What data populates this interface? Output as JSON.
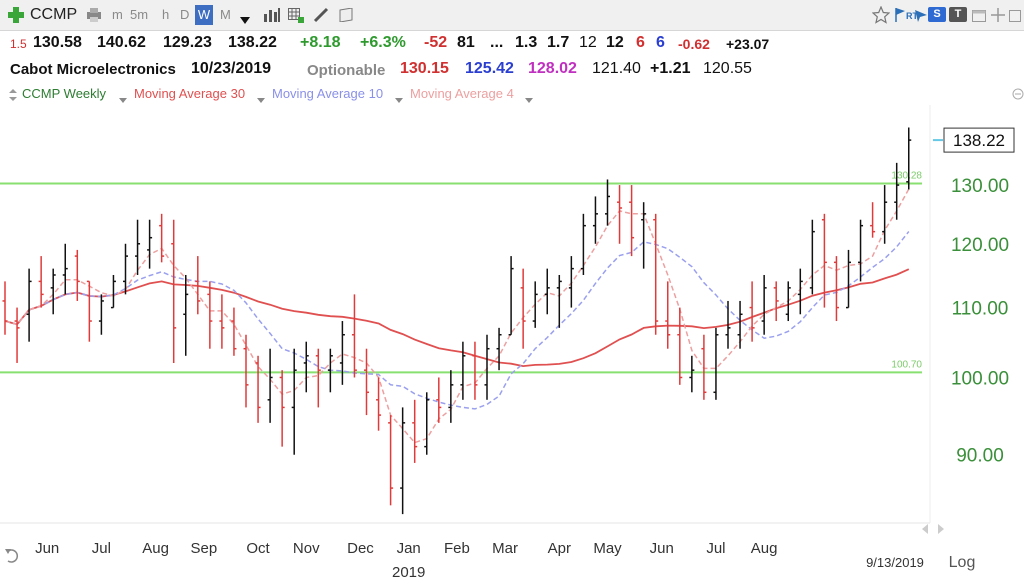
{
  "toolbar": {
    "symbol": "CCMP",
    "intervals": [
      "m",
      "5m",
      "h",
      "D",
      "W",
      "M"
    ],
    "active_interval": "W",
    "badge_s": "S",
    "badge_t": "T",
    "badge_rt": "RT"
  },
  "quote": {
    "line1": {
      "prefix": "1.5",
      "open": "130.58",
      "high": "140.62",
      "low": "129.23",
      "close": "138.22",
      "change": "+8.18",
      "change_pct": "+6.3%",
      "v1": "-52",
      "v2": "81",
      "ellipsis": "...",
      "v3": "1.3",
      "v4": "1.7",
      "v5": "12",
      "v6": "12",
      "v7": "6",
      "v8": "6",
      "v9": "-0.62",
      "v10": "+23.07"
    },
    "line2": {
      "name": "Cabot Microelectronics",
      "date": "10/23/2019",
      "optionable": "Optionable",
      "ma30": "130.15",
      "ma10": "125.42",
      "ma4": "128.02",
      "a": "121.40",
      "b": "+1.21",
      "c": "120.55"
    }
  },
  "legend": {
    "items": [
      {
        "label": "CCMP Weekly",
        "color": "#2e7d32"
      },
      {
        "label": "Moving Average 30",
        "color": "#e05050"
      },
      {
        "label": "Moving Average 10",
        "color": "#8a90e8"
      },
      {
        "label": "Moving Average 4",
        "color": "#eca0a0"
      }
    ]
  },
  "colors": {
    "up_bar": "#111111",
    "down_bar": "#e03a3a",
    "ma30": "#e05050",
    "ma10": "#9aa0ee",
    "ma4": "#eca0a0",
    "hline": "#88e070",
    "axis_text": "#3a8f3a"
  },
  "chart_data": {
    "type": "ohlc",
    "scale": "log",
    "ylim": [
      82,
      145
    ],
    "y_ticks": [
      90,
      100,
      110,
      120,
      130
    ],
    "y_tick_labels": [
      "90.00",
      "100.00",
      "110.00",
      "120.00",
      "130.00"
    ],
    "last_price_label": "138.22",
    "last_price": 138.22,
    "x_month_labels": [
      "Jun",
      "Jul",
      "Aug",
      "Sep",
      "Oct",
      "Nov",
      "Dec",
      "Jan",
      "Feb",
      "Mar",
      "Apr",
      "May",
      "Jun",
      "Jul",
      "Aug"
    ],
    "x_month_index": [
      3.5,
      8,
      12.5,
      16.5,
      21,
      25,
      29.5,
      33.5,
      37.5,
      41.5,
      46,
      50,
      54.5,
      59,
      63
    ],
    "year_label": "2019",
    "year_index": 33.5,
    "date_label": "9/13/2019",
    "log_label": "Log",
    "horizontal_lines": [
      {
        "value": 130.28,
        "label": "130.28"
      },
      {
        "value": 100.7,
        "label": "100.70"
      }
    ],
    "bars": [
      {
        "o": 111,
        "h": 114,
        "l": 106,
        "c": 108
      },
      {
        "o": 108,
        "h": 110,
        "l": 102,
        "c": 107
      },
      {
        "o": 109,
        "h": 116,
        "l": 105,
        "c": 114
      },
      {
        "o": 114,
        "h": 118,
        "l": 110,
        "c": 112
      },
      {
        "o": 113,
        "h": 116,
        "l": 109,
        "c": 115
      },
      {
        "o": 115,
        "h": 120,
        "l": 112,
        "c": 116
      },
      {
        "o": 118,
        "h": 119,
        "l": 111,
        "c": 114
      },
      {
        "o": 114,
        "h": 114,
        "l": 105,
        "c": 108
      },
      {
        "o": 108,
        "h": 112,
        "l": 106,
        "c": 111
      },
      {
        "o": 110,
        "h": 115,
        "l": 110,
        "c": 114
      },
      {
        "o": 114,
        "h": 120,
        "l": 112,
        "c": 118
      },
      {
        "o": 118,
        "h": 124,
        "l": 115,
        "c": 120
      },
      {
        "o": 119,
        "h": 124,
        "l": 116,
        "c": 121
      },
      {
        "o": 123,
        "h": 125,
        "l": 117,
        "c": 118
      },
      {
        "o": 120,
        "h": 124,
        "l": 102,
        "c": 107
      },
      {
        "o": 109,
        "h": 115,
        "l": 103,
        "c": 112
      },
      {
        "o": 114,
        "h": 118,
        "l": 109,
        "c": 111
      },
      {
        "o": 112,
        "h": 114,
        "l": 104,
        "c": 108
      },
      {
        "o": 108,
        "h": 112,
        "l": 104,
        "c": 107
      },
      {
        "o": 108,
        "h": 110,
        "l": 103,
        "c": 104
      },
      {
        "o": 104,
        "h": 106,
        "l": 96,
        "c": 99
      },
      {
        "o": 102,
        "h": 103,
        "l": 94,
        "c": 96
      },
      {
        "o": 97,
        "h": 104,
        "l": 94,
        "c": 100
      },
      {
        "o": 100,
        "h": 101,
        "l": 91,
        "c": 96
      },
      {
        "o": 96,
        "h": 104,
        "l": 90,
        "c": 101
      },
      {
        "o": 102,
        "h": 105,
        "l": 98,
        "c": 103
      },
      {
        "o": 103,
        "h": 104,
        "l": 96,
        "c": 101
      },
      {
        "o": 101,
        "h": 104,
        "l": 98,
        "c": 103
      },
      {
        "o": 102,
        "h": 108,
        "l": 99,
        "c": 106
      },
      {
        "o": 106,
        "h": 112,
        "l": 100,
        "c": 101
      },
      {
        "o": 101,
        "h": 104,
        "l": 95,
        "c": 98
      },
      {
        "o": 97,
        "h": 100,
        "l": 93,
        "c": 95
      },
      {
        "o": 94,
        "h": 95,
        "l": 84,
        "c": 86
      },
      {
        "o": 86,
        "h": 96,
        "l": 83,
        "c": 94
      },
      {
        "o": 94,
        "h": 97,
        "l": 89,
        "c": 91
      },
      {
        "o": 91,
        "h": 98,
        "l": 90,
        "c": 97
      },
      {
        "o": 97,
        "h": 100,
        "l": 94,
        "c": 96
      },
      {
        "o": 96,
        "h": 101,
        "l": 94,
        "c": 99
      },
      {
        "o": 99,
        "h": 105,
        "l": 97,
        "c": 103
      },
      {
        "o": 103,
        "h": 105,
        "l": 97,
        "c": 99
      },
      {
        "o": 99,
        "h": 106,
        "l": 97,
        "c": 104
      },
      {
        "o": 104,
        "h": 107,
        "l": 101,
        "c": 106
      },
      {
        "o": 106,
        "h": 118,
        "l": 106,
        "c": 116
      },
      {
        "o": 113,
        "h": 116,
        "l": 104,
        "c": 108
      },
      {
        "o": 108,
        "h": 114,
        "l": 107,
        "c": 112
      },
      {
        "o": 112,
        "h": 116,
        "l": 109,
        "c": 113
      },
      {
        "o": 113,
        "h": 115,
        "l": 107,
        "c": 114
      },
      {
        "o": 113,
        "h": 118,
        "l": 110,
        "c": 116
      },
      {
        "o": 116,
        "h": 125,
        "l": 115,
        "c": 123
      },
      {
        "o": 123,
        "h": 128,
        "l": 120,
        "c": 125
      },
      {
        "o": 125,
        "h": 131,
        "l": 123,
        "c": 128
      },
      {
        "o": 127,
        "h": 130,
        "l": 120,
        "c": 126
      },
      {
        "o": 127,
        "h": 130,
        "l": 118,
        "c": 121
      },
      {
        "o": 124,
        "h": 127,
        "l": 116,
        "c": 125
      },
      {
        "o": 124,
        "h": 125,
        "l": 106,
        "c": 108
      },
      {
        "o": 108,
        "h": 114,
        "l": 104,
        "c": 106
      },
      {
        "o": 106,
        "h": 110,
        "l": 99,
        "c": 100
      },
      {
        "o": 100,
        "h": 103,
        "l": 98,
        "c": 101
      },
      {
        "o": 104,
        "h": 106,
        "l": 97,
        "c": 98
      },
      {
        "o": 98,
        "h": 107,
        "l": 97,
        "c": 106
      },
      {
        "o": 106,
        "h": 111,
        "l": 104,
        "c": 107
      },
      {
        "o": 106,
        "h": 111,
        "l": 104,
        "c": 109
      },
      {
        "o": 110,
        "h": 114,
        "l": 105,
        "c": 107
      },
      {
        "o": 108,
        "h": 115,
        "l": 106,
        "c": 113
      },
      {
        "o": 113,
        "h": 114,
        "l": 108,
        "c": 111
      },
      {
        "o": 109,
        "h": 114,
        "l": 108,
        "c": 113
      },
      {
        "o": 112,
        "h": 116,
        "l": 109,
        "c": 114
      },
      {
        "o": 113,
        "h": 124,
        "l": 112,
        "c": 122
      },
      {
        "o": 124,
        "h": 125,
        "l": 110,
        "c": 117
      },
      {
        "o": 117,
        "h": 118,
        "l": 108,
        "c": 110
      },
      {
        "o": 110,
        "h": 119,
        "l": 110,
        "c": 117
      },
      {
        "o": 117,
        "h": 124,
        "l": 114,
        "c": 123
      },
      {
        "o": 123,
        "h": 127,
        "l": 121,
        "c": 122
      },
      {
        "o": 122,
        "h": 130,
        "l": 120,
        "c": 127
      },
      {
        "o": 127,
        "h": 134,
        "l": 124,
        "c": 130
      },
      {
        "o": 130.58,
        "h": 140.62,
        "l": 129.23,
        "c": 138.22
      }
    ]
  }
}
